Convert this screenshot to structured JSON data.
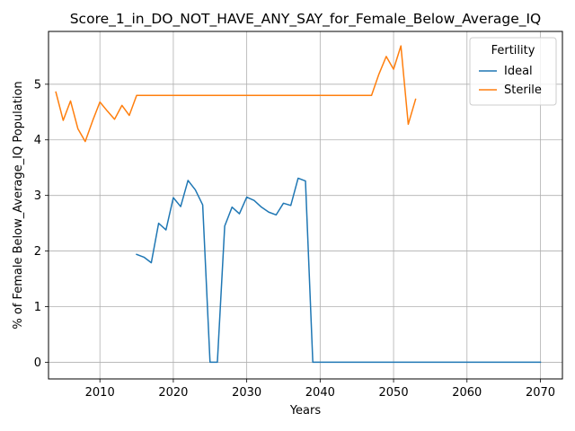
{
  "chart_data": {
    "type": "line",
    "title": "Score_1_in_DO_NOT_HAVE_ANY_SAY_for_Female_Below_Average_IQ",
    "xlabel": "Years",
    "ylabel": "% of Female Below_Average_IQ Population",
    "xlim": [
      2003,
      2073
    ],
    "ylim": [
      -0.3,
      5.95
    ],
    "xticks": [
      2010,
      2020,
      2030,
      2040,
      2050,
      2060,
      2070
    ],
    "yticks": [
      0,
      1,
      2,
      3,
      4,
      5
    ],
    "grid": true,
    "legend": {
      "title": "Fertility",
      "placement": "top-right"
    },
    "series": [
      {
        "name": "Ideal",
        "color": "#1f77b4",
        "x": [
          2015,
          2016,
          2017,
          2018,
          2019,
          2020,
          2021,
          2022,
          2023,
          2024,
          2025,
          2026,
          2027,
          2028,
          2029,
          2030,
          2031,
          2032,
          2033,
          2034,
          2035,
          2036,
          2037,
          2038,
          2039,
          2040,
          2041,
          2042,
          2043,
          2044,
          2045,
          2046,
          2047,
          2048,
          2049,
          2050,
          2051,
          2052,
          2053,
          2054,
          2055,
          2056,
          2057,
          2058,
          2059,
          2060,
          2061,
          2062,
          2063,
          2064,
          2065,
          2066,
          2067,
          2068,
          2069,
          2070
        ],
        "y": [
          1.94,
          1.89,
          1.79,
          2.5,
          2.38,
          2.96,
          2.8,
          3.27,
          3.1,
          2.83,
          0,
          0,
          2.45,
          2.79,
          2.67,
          2.97,
          2.91,
          2.79,
          2.7,
          2.65,
          2.86,
          2.82,
          3.31,
          3.26,
          0,
          0,
          0,
          0,
          0,
          0,
          0,
          0,
          0,
          0,
          0,
          0,
          0,
          0,
          0,
          0,
          0,
          0,
          0,
          0,
          0,
          0,
          0,
          0,
          0,
          0,
          0,
          0,
          0,
          0,
          0,
          0
        ]
      },
      {
        "name": "Sterile",
        "color": "#ff7f0e",
        "x": [
          2004,
          2005,
          2006,
          2007,
          2008,
          2009,
          2010,
          2011,
          2012,
          2013,
          2014,
          2015,
          2016,
          2017,
          2018,
          2019,
          2020,
          2021,
          2022,
          2023,
          2024,
          2025,
          2026,
          2027,
          2028,
          2029,
          2030,
          2031,
          2032,
          2033,
          2034,
          2035,
          2036,
          2037,
          2038,
          2039,
          2040,
          2041,
          2042,
          2043,
          2044,
          2045,
          2046,
          2047,
          2048,
          2049,
          2050,
          2051,
          2052,
          2053
        ],
        "y": [
          4.86,
          4.35,
          4.7,
          4.2,
          3.97,
          4.34,
          4.68,
          4.52,
          4.37,
          4.62,
          4.44,
          4.8,
          4.8,
          4.8,
          4.8,
          4.8,
          4.8,
          4.8,
          4.8,
          4.8,
          4.8,
          4.8,
          4.8,
          4.8,
          4.8,
          4.8,
          4.8,
          4.8,
          4.8,
          4.8,
          4.8,
          4.8,
          4.8,
          4.8,
          4.8,
          4.8,
          4.8,
          4.8,
          4.8,
          4.8,
          4.8,
          4.8,
          4.8,
          4.8,
          5.18,
          5.5,
          5.27,
          5.69,
          4.28,
          4.73
        ]
      }
    ]
  }
}
